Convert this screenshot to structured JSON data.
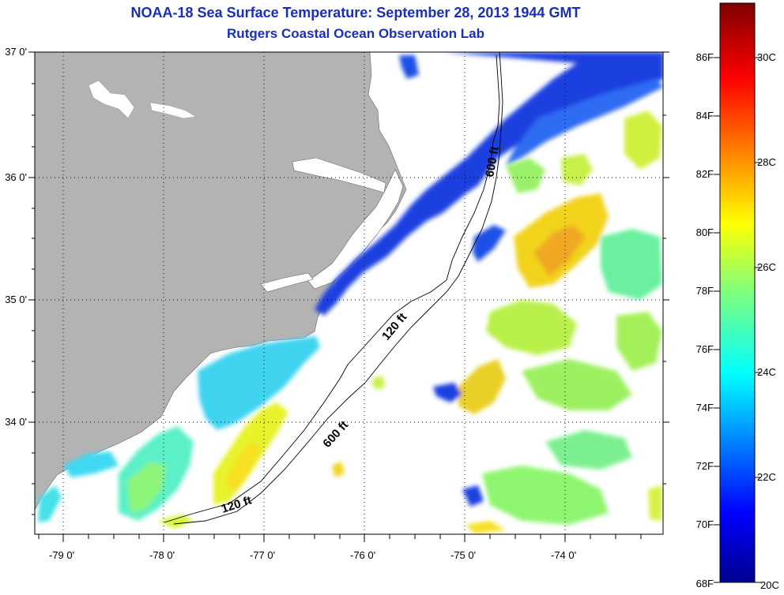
{
  "title": "NOAA-18 Sea Surface Temperature:  September 28, 2013 1944 GMT",
  "subtitle": "Rutgers Coastal Ocean Observation Lab",
  "map": {
    "lon_labels": [
      "-79 0'",
      "-78 0'",
      "-77 0'",
      "-76 0'",
      "-75 0'",
      "-74 0'"
    ],
    "lat_labels": [
      "37 0'",
      "36 0'",
      "35 0'",
      "34 0'"
    ],
    "isobaths": [
      {
        "label": "120 ft"
      },
      {
        "label": "600 ft"
      },
      {
        "label": "120 ft"
      },
      {
        "label": "600 ft"
      }
    ],
    "colors": {
      "land": "#b3b3b3",
      "no_data": "#ffffff",
      "title": "#1a2fb8"
    }
  },
  "colorbar": {
    "fahrenheit": [
      "86F",
      "84F",
      "82F",
      "80F",
      "78F",
      "76F",
      "74F",
      "72F",
      "70F",
      "68F"
    ],
    "celsius": [
      "30C",
      "28C",
      "26C",
      "24C",
      "22C",
      "20C"
    ],
    "range_celsius": [
      20,
      31.1
    ],
    "scale": "jet"
  }
}
